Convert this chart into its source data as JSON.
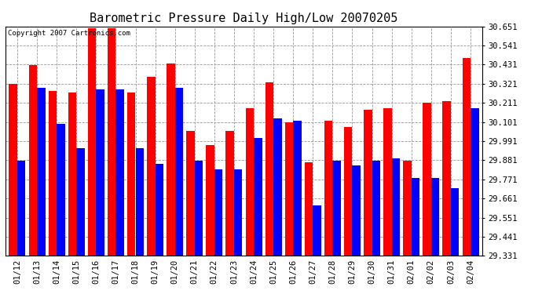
{
  "title": "Barometric Pressure Daily High/Low 20070205",
  "copyright": "Copyright 2007 Cartronics.com",
  "ylim": [
    29.331,
    30.651
  ],
  "yticks": [
    29.331,
    29.441,
    29.551,
    29.661,
    29.771,
    29.881,
    29.991,
    30.101,
    30.211,
    30.321,
    30.431,
    30.541,
    30.651
  ],
  "dates": [
    "01/12",
    "01/13",
    "01/14",
    "01/15",
    "01/16",
    "01/17",
    "01/18",
    "01/19",
    "01/20",
    "01/21",
    "01/22",
    "01/23",
    "01/24",
    "01/25",
    "01/26",
    "01/27",
    "01/28",
    "01/29",
    "01/30",
    "01/31",
    "02/01",
    "02/02",
    "02/03",
    "02/04"
  ],
  "highs": [
    30.32,
    30.43,
    30.28,
    30.27,
    30.64,
    30.64,
    30.27,
    30.36,
    30.44,
    30.05,
    29.97,
    30.05,
    30.18,
    30.33,
    30.1,
    29.87,
    30.11,
    30.07,
    30.17,
    30.18,
    29.88,
    30.21,
    30.22,
    30.47
  ],
  "lows": [
    29.88,
    30.3,
    30.09,
    29.95,
    30.29,
    30.29,
    29.95,
    29.86,
    30.3,
    29.88,
    29.83,
    29.83,
    30.01,
    30.12,
    30.11,
    29.62,
    29.88,
    29.85,
    29.88,
    29.89,
    29.78,
    29.78,
    29.72,
    30.18
  ],
  "high_color": "#ff0000",
  "low_color": "#0000ff",
  "bg_color": "#ffffff",
  "plot_bg_color": "#ffffff",
  "grid_color": "#999999",
  "title_fontsize": 11,
  "tick_fontsize": 7.5,
  "bar_width": 0.42
}
